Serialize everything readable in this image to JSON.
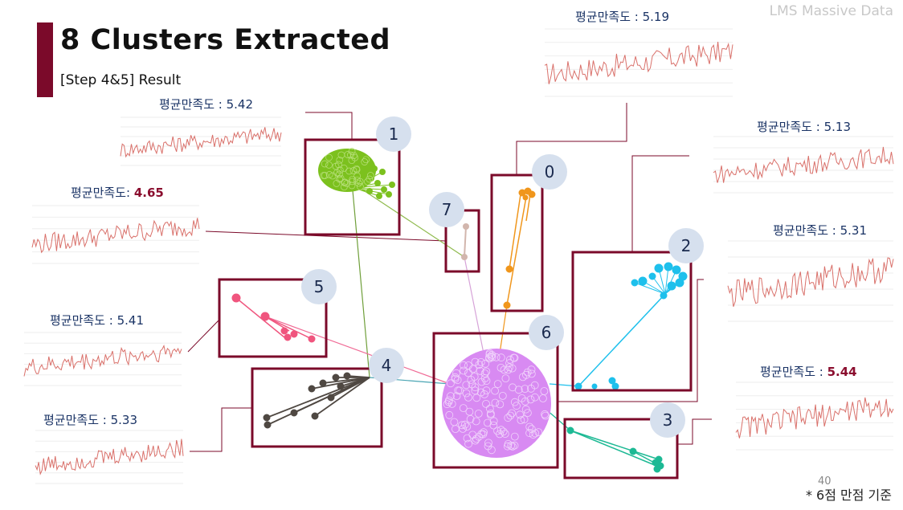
{
  "header": {
    "title": "8 Clusters Extracted",
    "subtitle": "[Step 4&5] Result",
    "brand": "LMS Massive Data",
    "page_number": "40",
    "footnote": "* 6점 만점 기준"
  },
  "colors": {
    "accent": "#7b0a2a",
    "box_border": "#7b0a2a",
    "badge_fill": "#d6e0ee",
    "sparkline": "#d9706a"
  },
  "clusters": [
    {
      "id": "0",
      "label_prefix": "평균만족도 : ",
      "satisfaction": "5.19",
      "highlight": false,
      "color": "#f0961c"
    },
    {
      "id": "1",
      "label_prefix": "평균만족도 : ",
      "satisfaction": "5.42",
      "highlight": false,
      "color": "#7cc11e"
    },
    {
      "id": "2",
      "label_prefix": "평균만족도 : ",
      "satisfaction": "5.31",
      "highlight": false,
      "color": "#1ec0ec"
    },
    {
      "id": "3",
      "label_prefix": "평균만족도 : ",
      "satisfaction": "5.44",
      "highlight": true,
      "color": "#1db994"
    },
    {
      "id": "4",
      "label_prefix": "평균만족도 : ",
      "satisfaction": "5.33",
      "highlight": false,
      "color": "#4f4842"
    },
    {
      "id": "5",
      "label_prefix": "평균만족도 : ",
      "satisfaction": "5.41",
      "highlight": false,
      "color": "#f0557e"
    },
    {
      "id": "6",
      "label_prefix": "평균만족도 : ",
      "satisfaction": "5.13",
      "highlight": false,
      "color": "#d88af2"
    },
    {
      "id": "7",
      "label_prefix": "평균만족도: ",
      "satisfaction": "4.65",
      "highlight": true,
      "color": "#d2b6ad"
    }
  ]
}
